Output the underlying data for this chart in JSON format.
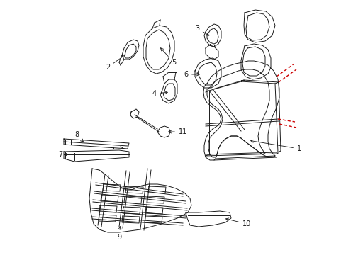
{
  "background_color": "#ffffff",
  "line_color": "#1a1a1a",
  "red_color": "#cc0000",
  "lw": 0.7
}
